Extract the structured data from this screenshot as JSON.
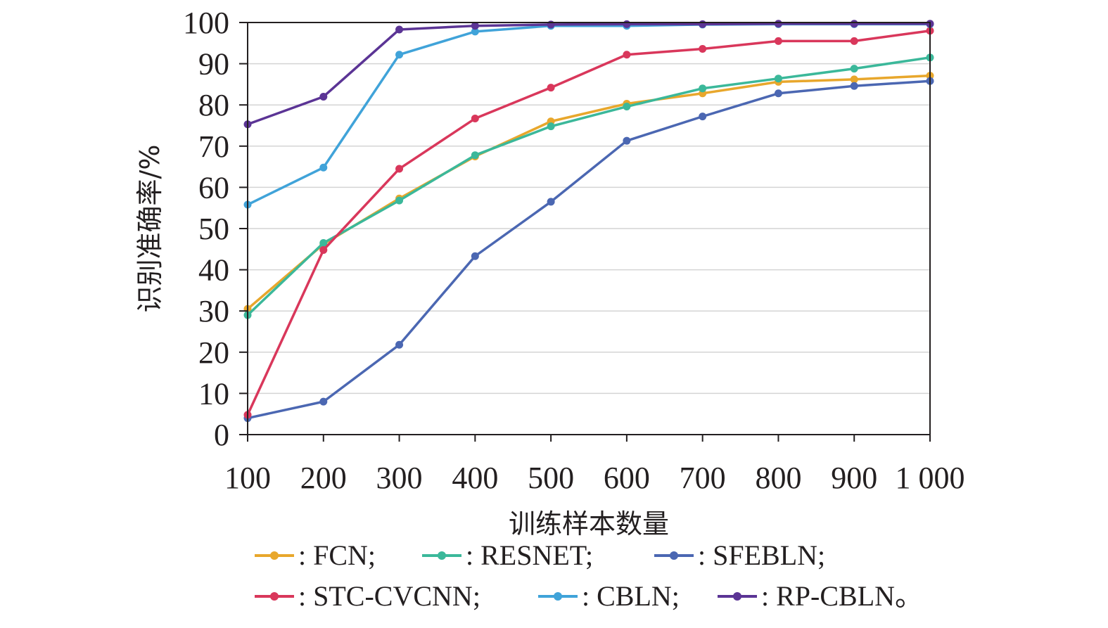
{
  "chart_data": {
    "type": "line",
    "xlabel": "训练样本数量",
    "ylabel": "识别准确率/%",
    "xlim": [
      100,
      1000
    ],
    "ylim": [
      0,
      100
    ],
    "x": [
      100,
      200,
      300,
      400,
      500,
      600,
      700,
      800,
      900,
      1000
    ],
    "x_tick_labels": [
      "100",
      "200",
      "300",
      "400",
      "500",
      "600",
      "700",
      "800",
      "900",
      "1 000"
    ],
    "y_ticks": [
      0,
      10,
      20,
      30,
      40,
      50,
      60,
      70,
      80,
      90,
      100
    ],
    "grid": "horizontal",
    "legend_position": "bottom",
    "series": [
      {
        "name": "FCN",
        "legend_label": ": FCN;",
        "color": "#e8a72c",
        "values": [
          30.5,
          46.2,
          57.3,
          67.5,
          76.0,
          80.3,
          82.8,
          85.6,
          86.2,
          87.1
        ]
      },
      {
        "name": "RESNET",
        "legend_label": ": RESNET;",
        "color": "#3bb89a",
        "values": [
          29.0,
          46.5,
          56.8,
          67.8,
          74.8,
          79.6,
          84.0,
          86.4,
          88.8,
          91.5
        ]
      },
      {
        "name": "SFEBLN",
        "legend_label": ": SFEBLN;",
        "color": "#4b67b2",
        "values": [
          4.0,
          8.0,
          21.8,
          43.3,
          56.5,
          71.3,
          77.2,
          82.8,
          84.6,
          85.8
        ]
      },
      {
        "name": "STC-CVCNN",
        "legend_label": ": STC-CVCNN;",
        "color": "#d9375b",
        "values": [
          4.8,
          44.8,
          64.5,
          76.7,
          84.2,
          92.2,
          93.6,
          95.5,
          95.5,
          98.0
        ]
      },
      {
        "name": "CBLN",
        "legend_label": ": CBLN;",
        "color": "#40a3d9",
        "values": [
          55.8,
          64.8,
          92.2,
          97.8,
          99.2,
          99.2,
          99.5,
          99.6,
          99.6,
          99.6
        ]
      },
      {
        "name": "RP-CBLN",
        "legend_label": ": RP-CBLN。",
        "color": "#5b3495",
        "values": [
          75.3,
          82.0,
          98.3,
          99.2,
          99.5,
          99.6,
          99.6,
          99.7,
          99.7,
          99.7
        ]
      }
    ]
  }
}
